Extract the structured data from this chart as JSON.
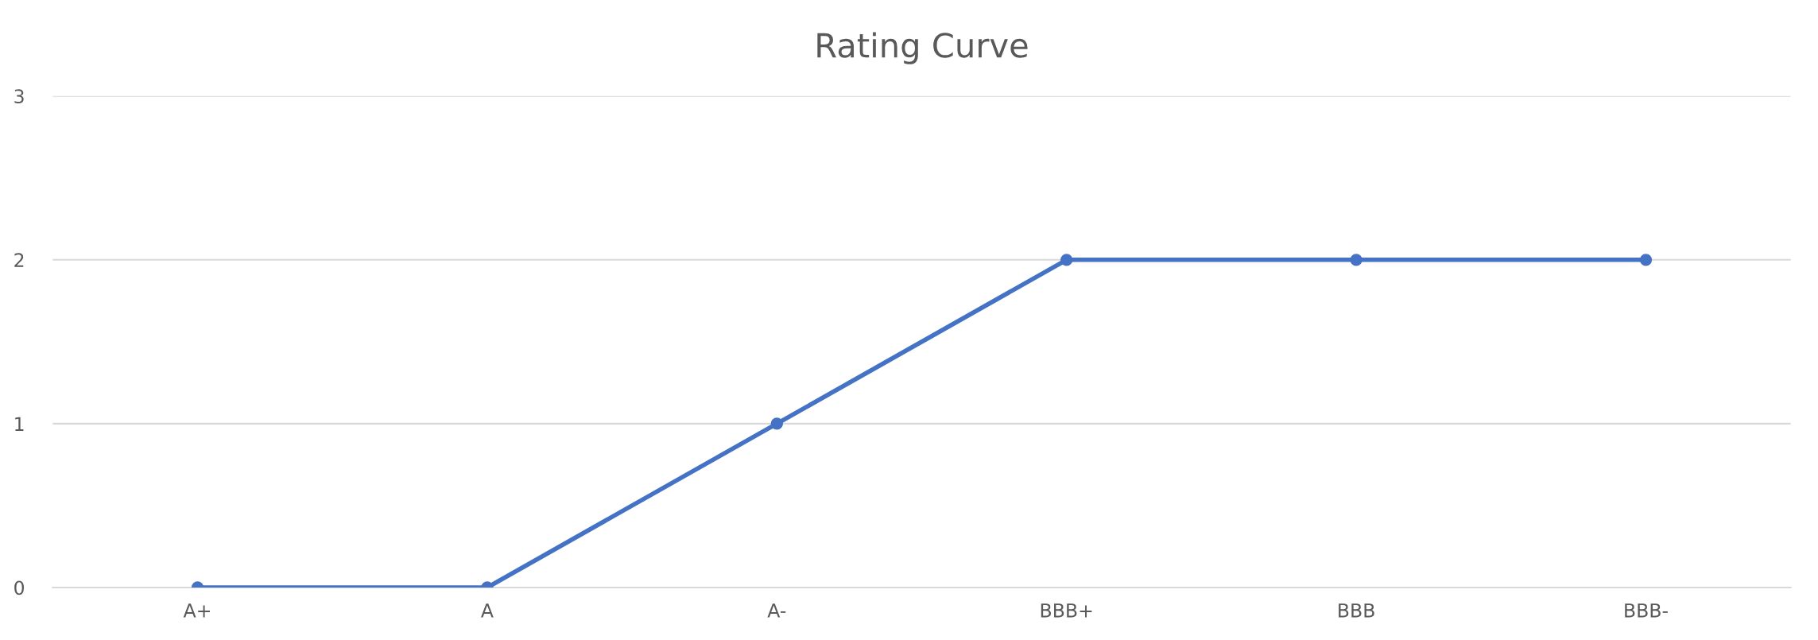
{
  "chart_data": {
    "type": "line",
    "title": "Rating Curve",
    "categories": [
      "A+",
      "A",
      "A-",
      "BBB+",
      "BBB",
      "BBB-"
    ],
    "series": [
      {
        "color": "#4472c4",
        "values": [
          0,
          0,
          1,
          2,
          2,
          2
        ]
      }
    ],
    "ylim": [
      0,
      3
    ],
    "yticks": [
      0,
      1,
      2,
      3
    ],
    "grid": "y",
    "marker": "circle",
    "line_style": "solid",
    "legend": false
  }
}
